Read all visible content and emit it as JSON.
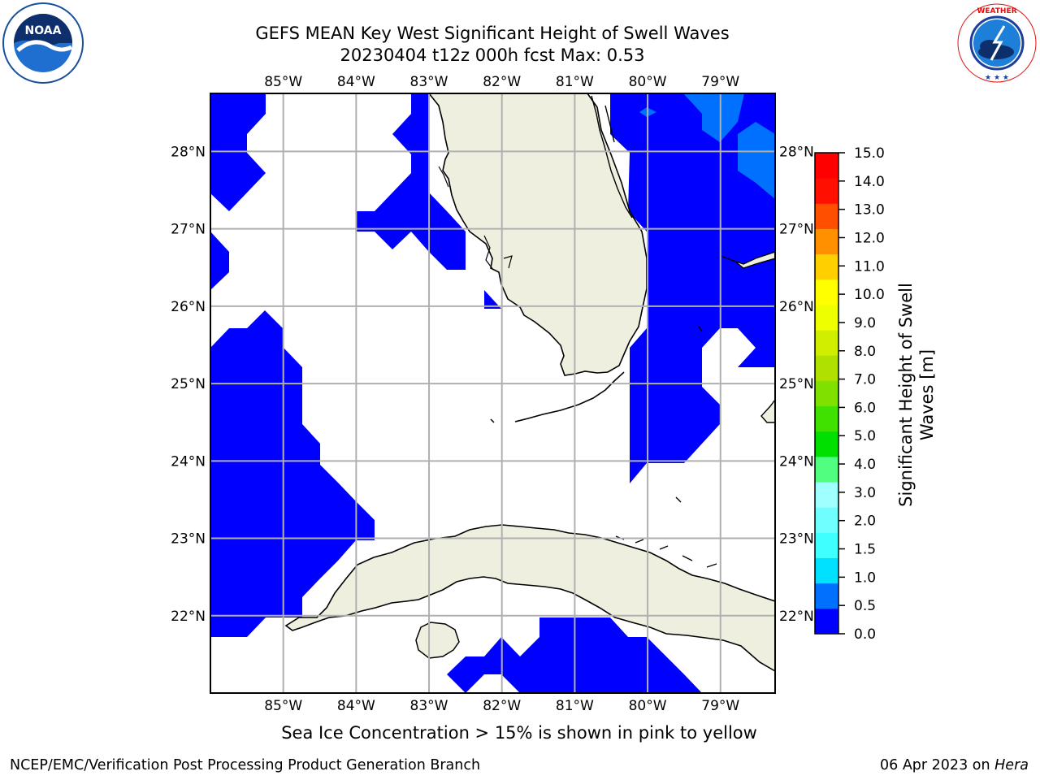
{
  "header": {
    "title_line1": "GEFS MEAN Key West Significant Height of Swell Waves",
    "title_line2": "20230404 t12z 000h fcst   Max: 0.53"
  },
  "logos": {
    "left": "noaa-logo",
    "right": "national-weather-service-logo",
    "nws_text": "NATIONAL WEATHER SERVICE"
  },
  "map": {
    "lon_range": [
      -86.0,
      -78.25
    ],
    "lat_range": [
      21.0,
      28.75
    ],
    "lon_ticks": [
      "85°W",
      "84°W",
      "83°W",
      "82°W",
      "81°W",
      "80°W",
      "79°W"
    ],
    "lat_ticks": [
      "22°N",
      "23°N",
      "24°N",
      "25°N",
      "26°N",
      "27°N",
      "28°N"
    ],
    "land_color": "#efefdf",
    "ocean_color": "#ffffff",
    "gridline_color": "#b0b0b0"
  },
  "colorbar": {
    "label_line1": "Significant Height of Swell",
    "label_line2": "Waves [m]",
    "ticks": [
      "0.0",
      "0.5",
      "1.0",
      "1.5",
      "2.0",
      "3.0",
      "4.0",
      "5.0",
      "6.0",
      "7.0",
      "8.0",
      "9.0",
      "10.0",
      "11.0",
      "12.0",
      "13.0",
      "14.0",
      "15.0"
    ],
    "colors": [
      "#0000ff",
      "#0070ff",
      "#00e0ff",
      "#40ffff",
      "#70ffff",
      "#a0ffff",
      "#50ff80",
      "#00e000",
      "#40e000",
      "#80e000",
      "#b0e000",
      "#d0ee00",
      "#eeff00",
      "#ffff00",
      "#ffd000",
      "#ff9000",
      "#ff5000",
      "#ff1000",
      "#ff0000"
    ]
  },
  "footer": {
    "subtitle": "Sea Ice Concentration > 15% is shown in pink to yellow",
    "left": "NCEP/EMC/Verification Post Processing Product Generation Branch",
    "right_date": "06 Apr 2023 on ",
    "right_host": "Hera"
  }
}
